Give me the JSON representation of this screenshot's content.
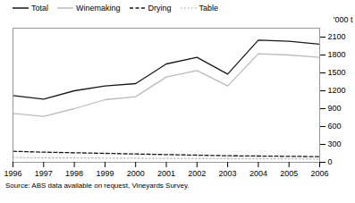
{
  "chart_data": {
    "type": "line",
    "x": [
      1996,
      1997,
      1998,
      1999,
      2000,
      2001,
      2002,
      2003,
      2004,
      2005,
      2006
    ],
    "xlim": [
      1996,
      2006
    ],
    "xticks": [
      1996,
      1997,
      1998,
      1999,
      2000,
      2001,
      2002,
      2003,
      2004,
      2005,
      2006
    ],
    "ylim": [
      0,
      2250
    ],
    "yticks": [
      0,
      300,
      600,
      900,
      1200,
      1500,
      1800,
      2100
    ],
    "ylabel": "'000 t",
    "series": [
      {
        "name": "Total",
        "color": "#1a1a1a",
        "line_style": "solid",
        "values": [
          1120,
          1060,
          1200,
          1280,
          1320,
          1650,
          1760,
          1480,
          2050,
          2030,
          1980
        ]
      },
      {
        "name": "Winemaking",
        "color": "#bbbbbb",
        "line_style": "solid",
        "values": [
          820,
          770,
          900,
          1050,
          1100,
          1430,
          1540,
          1280,
          1820,
          1800,
          1760
        ]
      },
      {
        "name": "Drying",
        "color": "#1a1a1a",
        "line_style": "dashed",
        "values": [
          185,
          170,
          160,
          150,
          140,
          130,
          120,
          110,
          105,
          100,
          95
        ]
      },
      {
        "name": "Table",
        "color": "#bbbbbb",
        "line_style": "dotted",
        "values": [
          80,
          75,
          75,
          70,
          68,
          65,
          65,
          60,
          60,
          58,
          55
        ]
      }
    ],
    "legend": "upper left",
    "grid": false,
    "annotations": [
      "Source: ABS data available on request, Vineyards Survey."
    ]
  }
}
